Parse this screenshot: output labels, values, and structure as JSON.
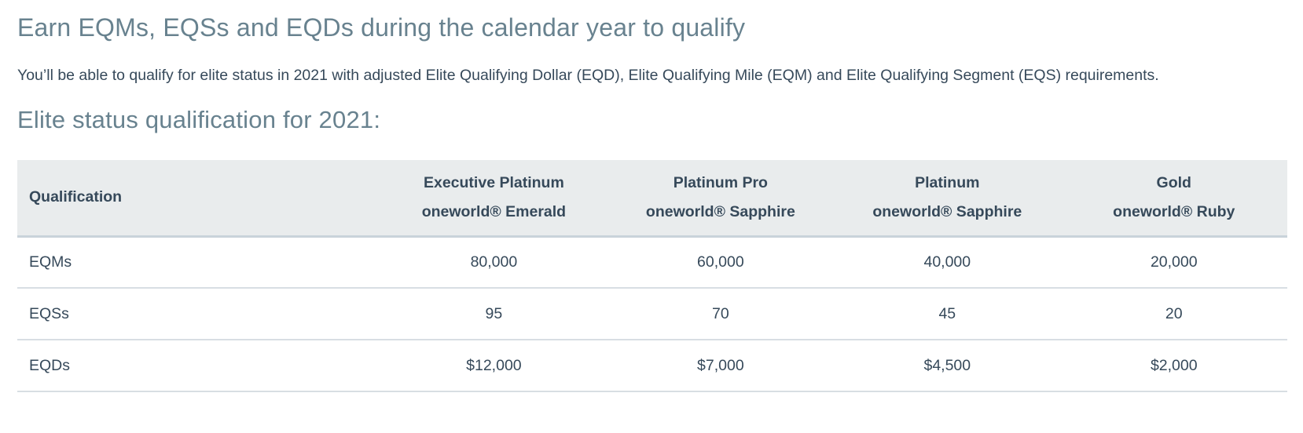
{
  "page": {
    "title": "Earn EQMs, EQSs and EQDs during the calendar year to qualify",
    "intro": "You’ll be able to qualify for elite status in 2021 with adjusted Elite Qualifying Dollar (EQD), Elite Qualifying Mile (EQM) and Elite Qualifying Segment (EQS) requirements.",
    "table_heading": "Elite status qualification for 2021:"
  },
  "table": {
    "columns": [
      {
        "title": "Qualification",
        "subtitle": ""
      },
      {
        "title": "Executive Platinum",
        "subtitle": "oneworld® Emerald"
      },
      {
        "title": "Platinum Pro",
        "subtitle": "oneworld® Sapphire"
      },
      {
        "title": "Platinum",
        "subtitle": "oneworld® Sapphire"
      },
      {
        "title": "Gold",
        "subtitle": "oneworld® Ruby"
      }
    ],
    "rows": [
      {
        "label": "EQMs",
        "values": [
          "80,000",
          "60,000",
          "40,000",
          "20,000"
        ]
      },
      {
        "label": "EQSs",
        "values": [
          "95",
          "70",
          "45",
          "20"
        ]
      },
      {
        "label": "EQDs",
        "values": [
          "$12,000",
          "$7,000",
          "$4,500",
          "$2,000"
        ]
      }
    ]
  },
  "colors": {
    "heading": "#68828f",
    "body_text": "#36495a",
    "table_header_bg": "#e9eced",
    "table_header_border": "#c9d3da",
    "row_divider": "#d8dee3"
  }
}
